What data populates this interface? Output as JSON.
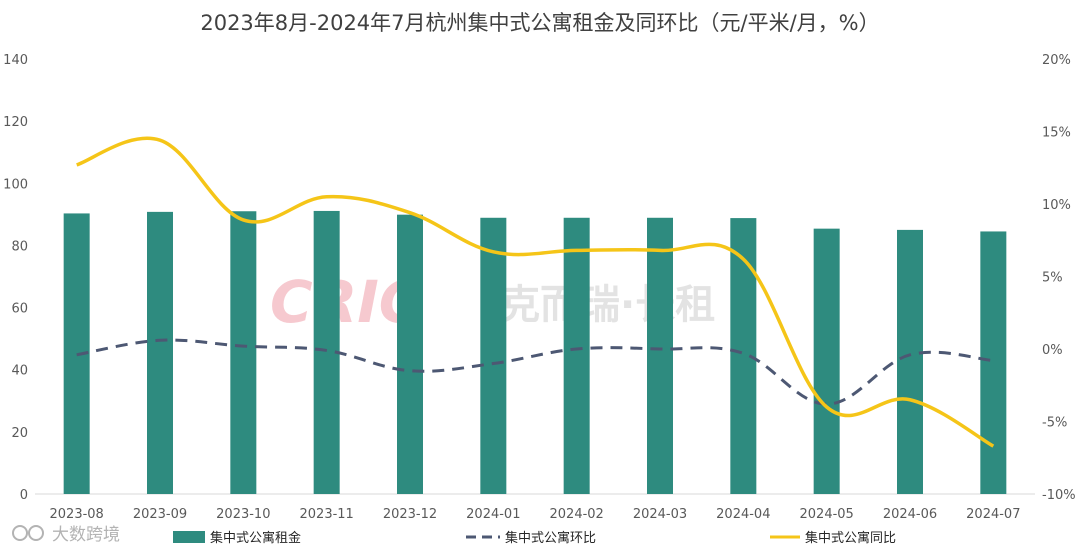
{
  "chart_data": {
    "type": "bar",
    "title": "2023年8月-2024年7月杭州集中式公寓租金及同环比（元/平米/月，%）",
    "categories": [
      "2023-08",
      "2023-09",
      "2023-10",
      "2023-11",
      "2023-12",
      "2024-01",
      "2024-02",
      "2024-03",
      "2024-04",
      "2024-05",
      "2024-06",
      "2024-07"
    ],
    "series": [
      {
        "name": "集中式公寓租金",
        "kind": "bar",
        "axis": "left",
        "color": "#2e8b7f",
        "values": [
          90.3,
          90.8,
          91.0,
          91.1,
          89.9,
          88.9,
          88.9,
          88.9,
          88.8,
          85.4,
          85.0,
          84.5
        ]
      },
      {
        "name": "集中式公寓环比",
        "kind": "line-dashed",
        "axis": "right",
        "color": "#4d5873",
        "values": [
          -0.4,
          0.6,
          0.2,
          -0.1,
          -1.5,
          -1.0,
          0.0,
          0.0,
          -0.3,
          -3.8,
          -0.4,
          -0.8
        ]
      },
      {
        "name": "集中式公寓同比",
        "kind": "line",
        "axis": "right",
        "color": "#f5c518",
        "values": [
          12.7,
          14.4,
          8.9,
          10.5,
          9.4,
          6.7,
          6.8,
          6.8,
          6.2,
          -4.0,
          -3.5,
          -6.7
        ]
      }
    ],
    "y_left": {
      "range": [
        0,
        140
      ],
      "ticks": [
        "0",
        "20",
        "40",
        "60",
        "80",
        "100",
        "120",
        "140"
      ]
    },
    "y_right": {
      "range": [
        -10,
        20
      ],
      "ticks": [
        "-10%",
        "-5%",
        "0%",
        "5%",
        "10%",
        "15%",
        "20%"
      ]
    },
    "grid": false,
    "legend_position": "bottom"
  },
  "watermark": {
    "logo": "CRIC",
    "text": "克而瑞·长租"
  },
  "source": {
    "text": "大数跨境",
    "icon": "source-logo-icon"
  }
}
